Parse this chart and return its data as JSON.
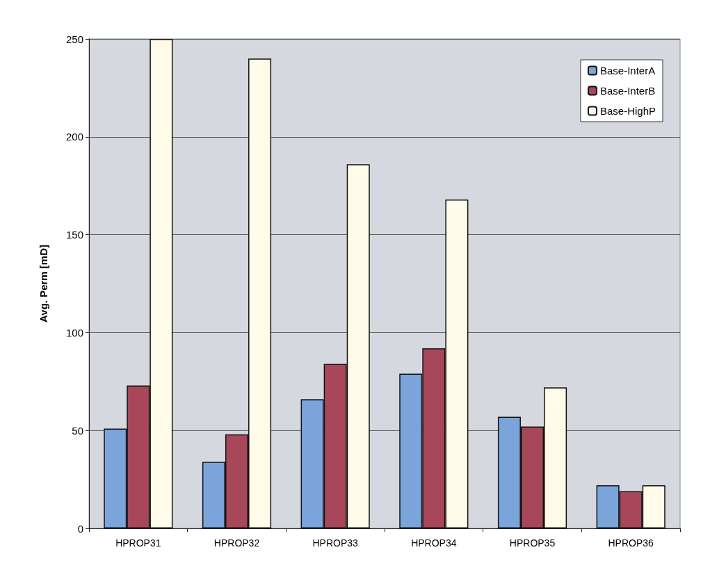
{
  "chart_data": {
    "type": "bar",
    "ylabel": "Avg. Perm [mD]",
    "categories": [
      "HPROP31",
      "HPROP32",
      "HPROP33",
      "HPROP34",
      "HPROP35",
      "HPROP36"
    ],
    "series": [
      {
        "name": "Base-InterA",
        "color": "#7ba4db",
        "values": [
          51,
          34,
          66,
          79,
          57,
          22
        ]
      },
      {
        "name": "Base-InterB",
        "color": "#a8475a",
        "values": [
          73,
          48,
          84,
          92,
          52,
          19
        ]
      },
      {
        "name": "Base-HighP",
        "color": "#fffbe8",
        "values": [
          250,
          240,
          186,
          168,
          72,
          22
        ]
      }
    ],
    "ylim": [
      0,
      250
    ],
    "yticks": [
      0,
      50,
      100,
      150,
      200,
      250
    ],
    "grid": "y",
    "legend": "top right"
  }
}
